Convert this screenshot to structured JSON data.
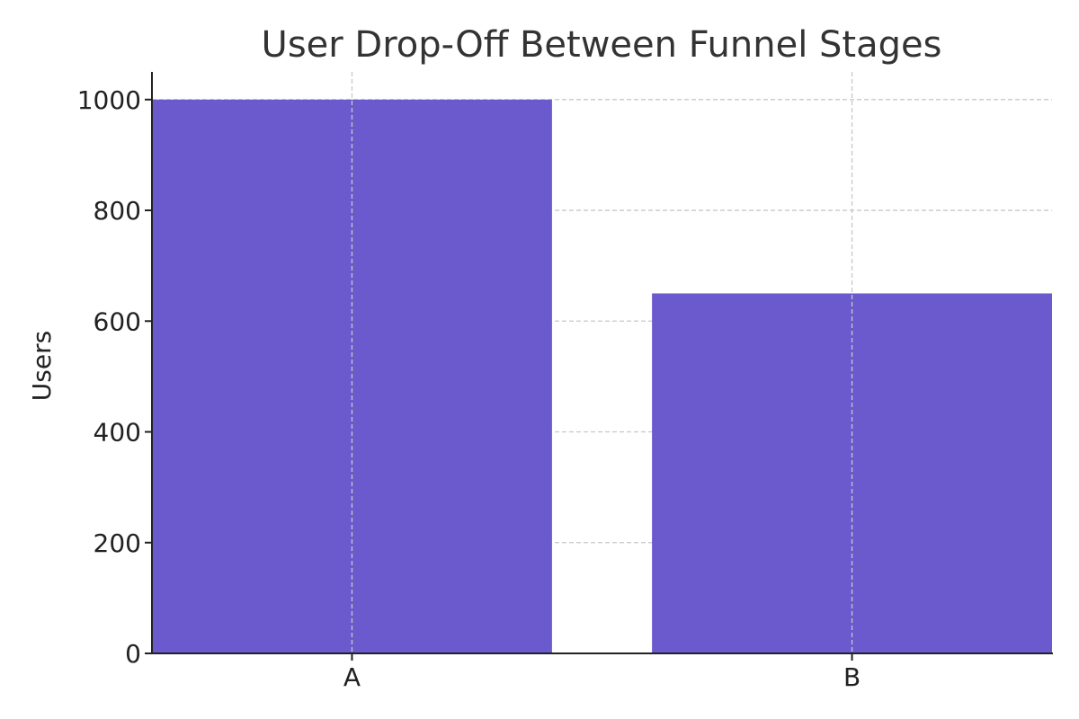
{
  "chart_data": {
    "type": "bar",
    "title": "User Drop-Off Between Funnel Stages",
    "xlabel": "",
    "ylabel": "Users",
    "categories": [
      "A",
      "B"
    ],
    "values": [
      1000,
      650
    ],
    "ylim": [
      0,
      1050
    ],
    "yticks": [
      0,
      200,
      400,
      600,
      800,
      1000
    ],
    "grid": true,
    "bar_color": "#6a5acd"
  }
}
